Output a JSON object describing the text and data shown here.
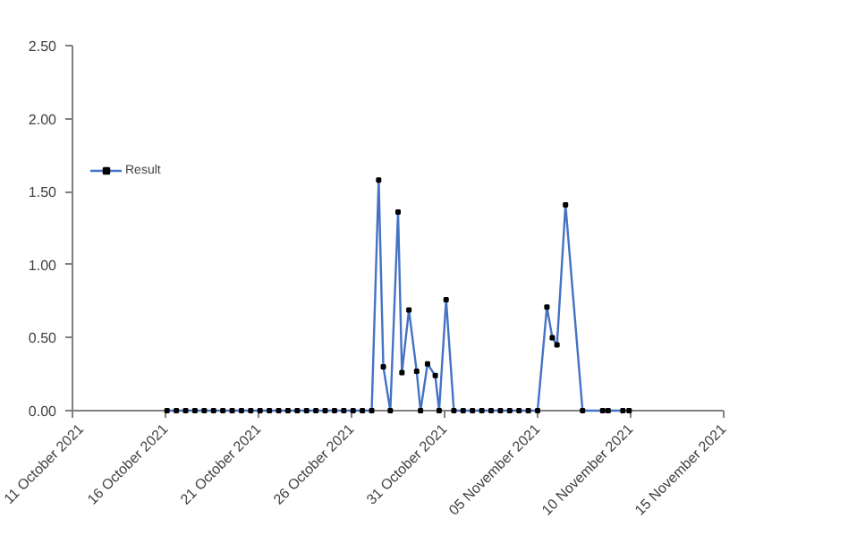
{
  "chart_data": {
    "type": "line",
    "x": [
      "2021-10-16T02:00",
      "2021-10-16T14:00",
      "2021-10-17T02:00",
      "2021-10-17T14:00",
      "2021-10-18T02:00",
      "2021-10-18T14:00",
      "2021-10-19T02:00",
      "2021-10-19T14:00",
      "2021-10-20T02:00",
      "2021-10-20T14:00",
      "2021-10-21T02:00",
      "2021-10-21T14:00",
      "2021-10-22T02:00",
      "2021-10-22T14:00",
      "2021-10-23T02:00",
      "2021-10-23T14:00",
      "2021-10-24T02:00",
      "2021-10-24T14:00",
      "2021-10-25T02:00",
      "2021-10-25T14:00",
      "2021-10-26T02:00",
      "2021-10-26T14:00",
      "2021-10-27T02:00",
      "2021-10-27T11:00",
      "2021-10-27T17:00",
      "2021-10-28T02:00",
      "2021-10-28T12:00",
      "2021-10-28T17:00",
      "2021-10-29T02:00",
      "2021-10-29T12:00",
      "2021-10-29T17:00",
      "2021-10-30T02:00",
      "2021-10-30T12:00",
      "2021-10-30T17:00",
      "2021-10-31T02:00",
      "2021-10-31T12:00",
      "2021-11-01T00:00",
      "2021-11-01T12:00",
      "2021-11-02T00:00",
      "2021-11-02T12:00",
      "2021-11-03T00:00",
      "2021-11-03T12:00",
      "2021-11-04T00:00",
      "2021-11-04T12:00",
      "2021-11-05T00:00",
      "2021-11-05T12:00",
      "2021-11-05T19:00",
      "2021-11-06T01:00",
      "2021-11-06T12:00",
      "2021-11-07T10:00",
      "2021-11-08T12:00",
      "2021-11-08T19:00",
      "2021-11-09T14:00",
      "2021-11-09T22:00"
    ],
    "series": [
      {
        "name": "Result",
        "color": "#4472c4",
        "values": [
          0,
          0,
          0,
          0,
          0,
          0,
          0,
          0,
          0,
          0,
          0,
          0,
          0,
          0,
          0,
          0,
          0,
          0,
          0,
          0,
          0,
          0,
          0,
          1.58,
          0.3,
          0,
          1.36,
          0.26,
          0.69,
          0.27,
          0,
          0.32,
          0.24,
          0,
          0.76,
          0,
          0,
          0,
          0,
          0,
          0,
          0,
          0,
          0,
          0,
          0.71,
          0.5,
          0.45,
          1.41,
          0,
          0,
          0,
          0,
          0
        ]
      }
    ],
    "xlim": [
      "2021-10-11",
      "2021-11-15"
    ],
    "xticks": [
      {
        "value": "2021-10-11",
        "label": "11 October 2021"
      },
      {
        "value": "2021-10-16",
        "label": "16 October 2021"
      },
      {
        "value": "2021-10-21",
        "label": "21 October 2021"
      },
      {
        "value": "2021-10-26",
        "label": "26 October 2021"
      },
      {
        "value": "2021-10-31",
        "label": "31 October 2021"
      },
      {
        "value": "2021-11-05",
        "label": "05 November 2021"
      },
      {
        "value": "2021-11-10",
        "label": "10 November 2021"
      },
      {
        "value": "2021-11-15",
        "label": "15 November 2021"
      }
    ],
    "ylim": [
      0,
      2.5
    ],
    "yticks": [
      {
        "value": 0,
        "label": "0.00"
      },
      {
        "value": 0.5,
        "label": "0.50"
      },
      {
        "value": 1,
        "label": "1.00"
      },
      {
        "value": 1.5,
        "label": "1.50"
      },
      {
        "value": 2,
        "label": "2.00"
      },
      {
        "value": 2.5,
        "label": "2.50"
      }
    ],
    "grid": false,
    "legend": "left",
    "marker": "square",
    "line_style": "solid"
  }
}
